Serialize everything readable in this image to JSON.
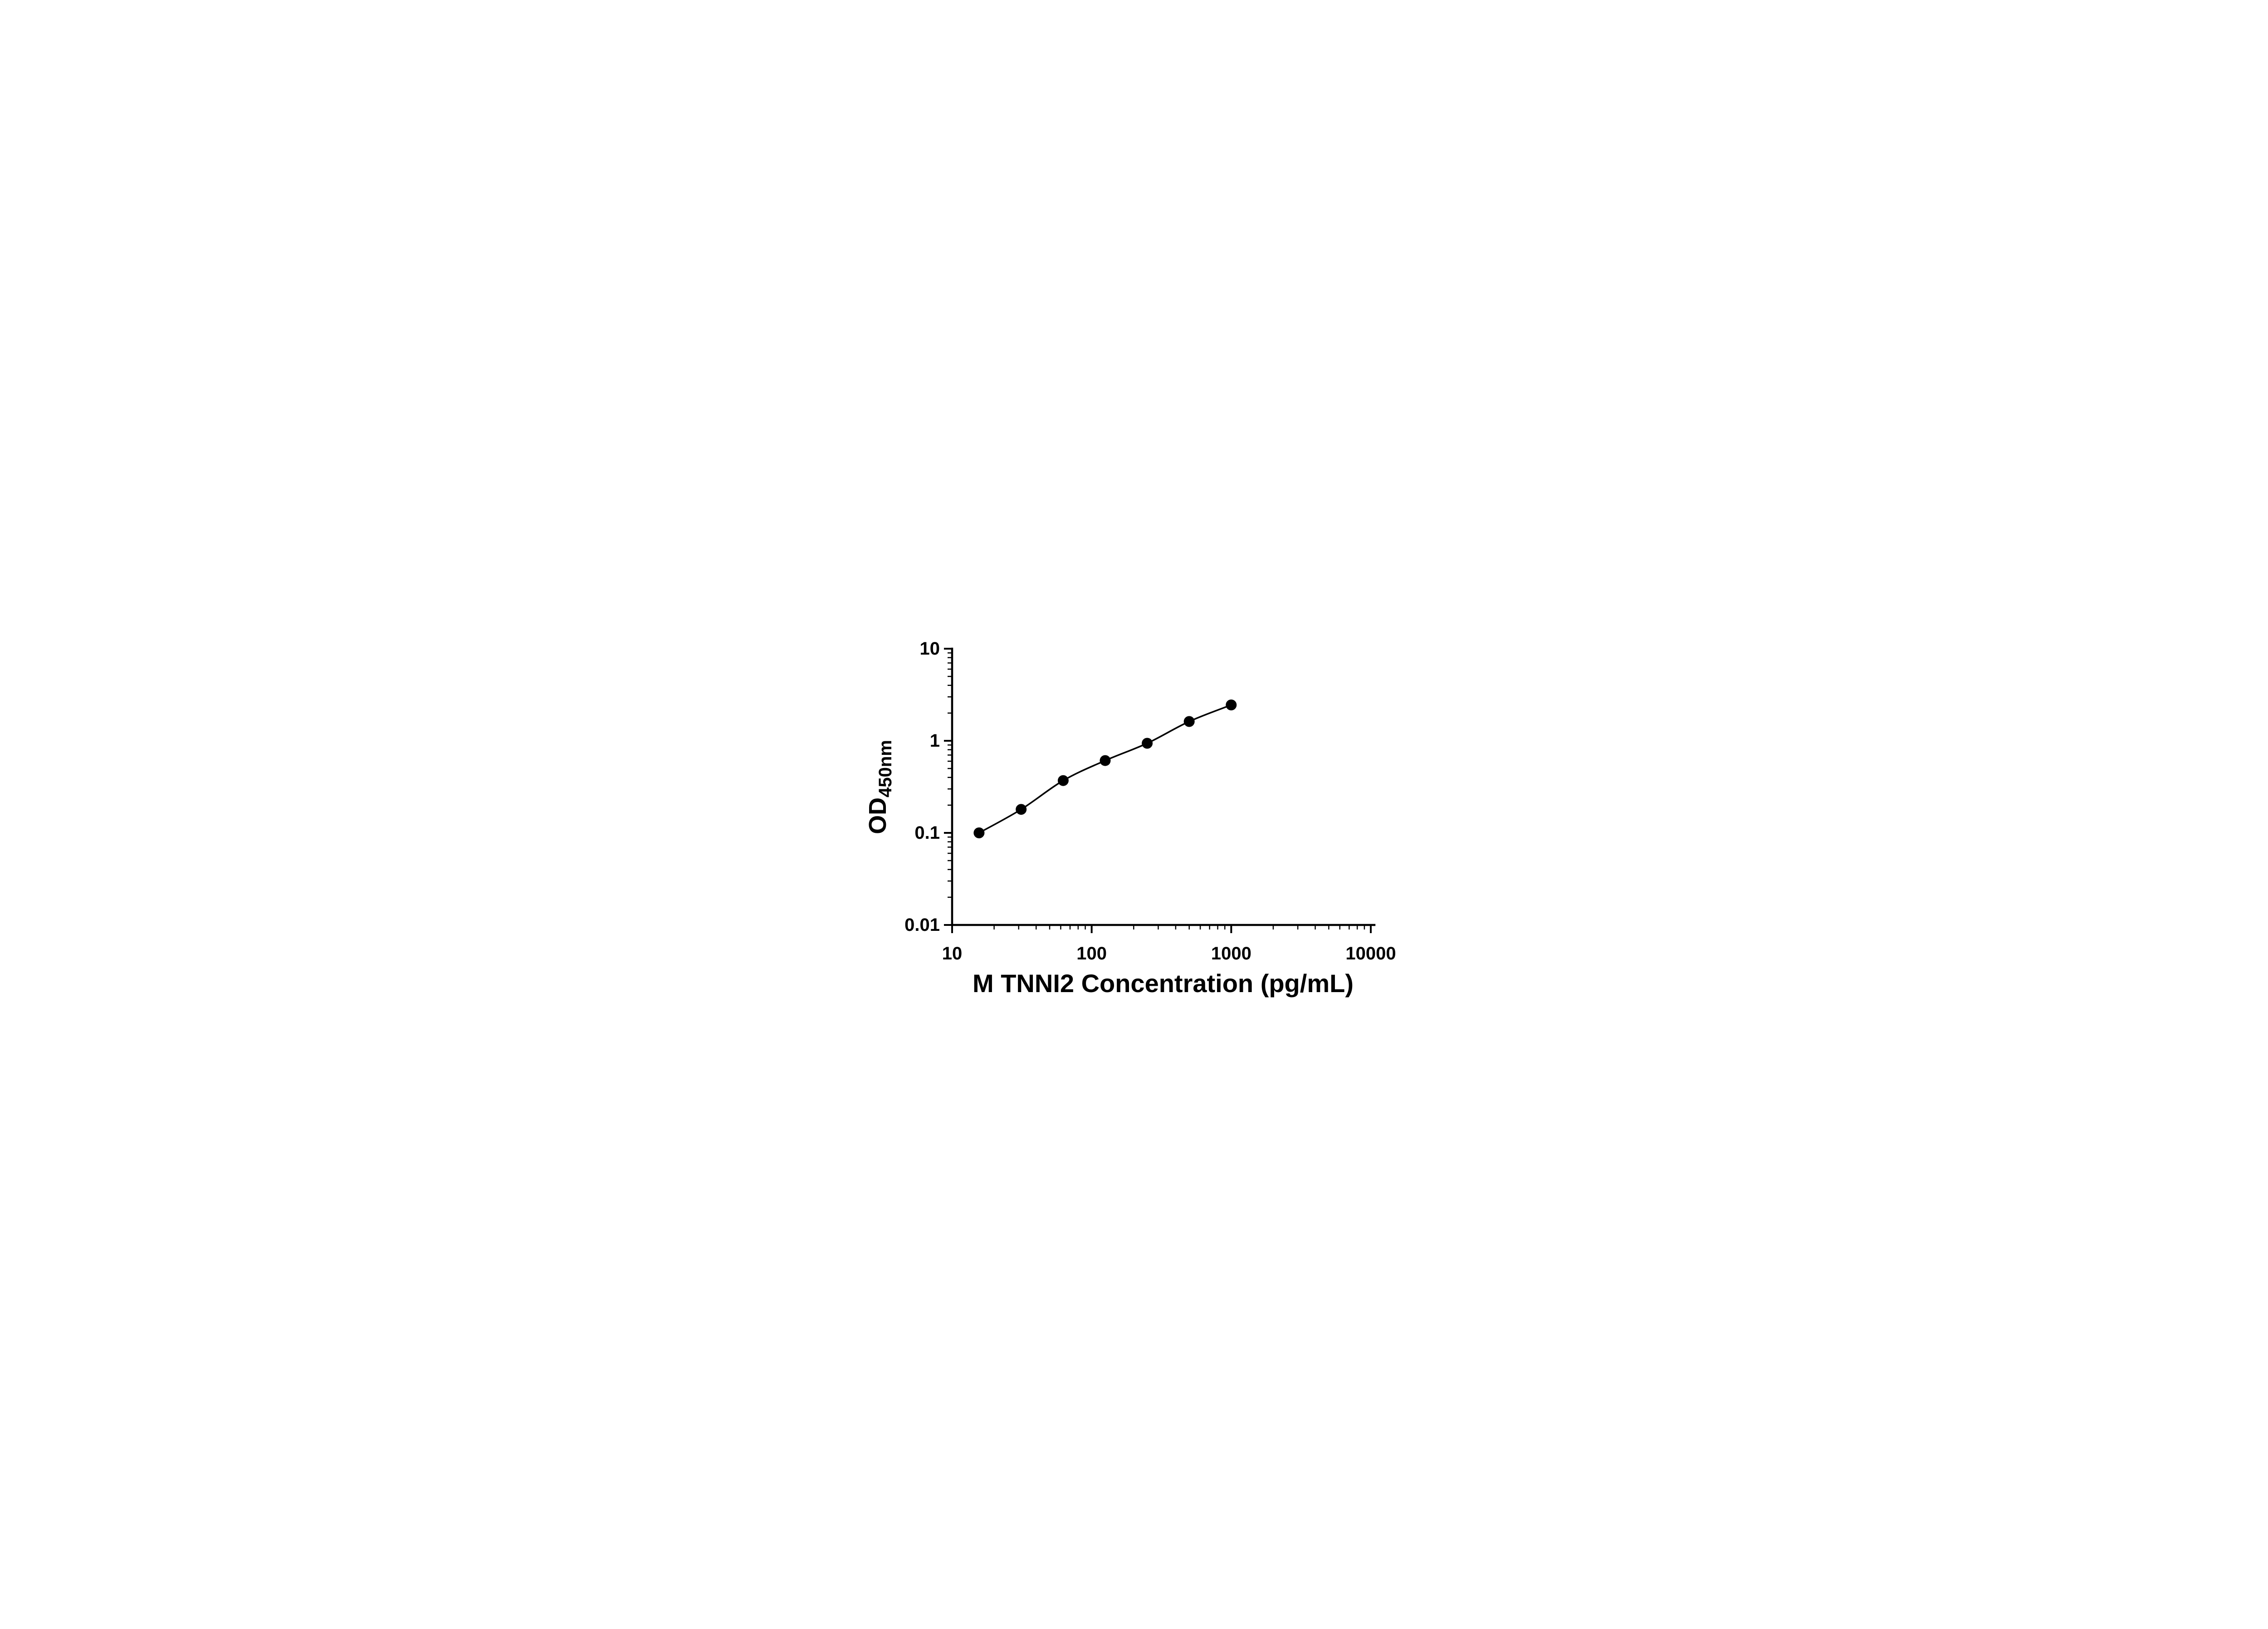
{
  "page": {
    "background_color": "#ffffff"
  },
  "chart_data": {
    "type": "scatter",
    "title": "",
    "xlabel": "M TNNI2 Concentration (pg/mL)",
    "ylabel_main": "OD",
    "ylabel_sub": "450nm",
    "x_scale": "log",
    "y_scale": "log",
    "xlim": [
      10,
      10000
    ],
    "ylim": [
      0.01,
      10
    ],
    "grid": false,
    "legend": "none",
    "axis_color": "#000000",
    "text_color": "#000000",
    "x_ticks": [
      {
        "value": 10,
        "label": "10"
      },
      {
        "value": 100,
        "label": "100"
      },
      {
        "value": 1000,
        "label": "1000"
      },
      {
        "value": 10000,
        "label": "10000"
      }
    ],
    "y_ticks": [
      {
        "value": 0.01,
        "label": "0.01"
      },
      {
        "value": 0.1,
        "label": "0.1"
      },
      {
        "value": 1,
        "label": "1"
      },
      {
        "value": 10,
        "label": "10"
      }
    ],
    "series": [
      {
        "x": [
          15.6,
          31.25,
          62.5,
          125,
          250,
          500,
          1000
        ],
        "y": [
          0.1,
          0.18,
          0.37,
          0.61,
          0.94,
          1.62,
          2.45
        ],
        "line_color": "#000000",
        "marker_color": "#000000",
        "marker": "circle"
      }
    ]
  }
}
